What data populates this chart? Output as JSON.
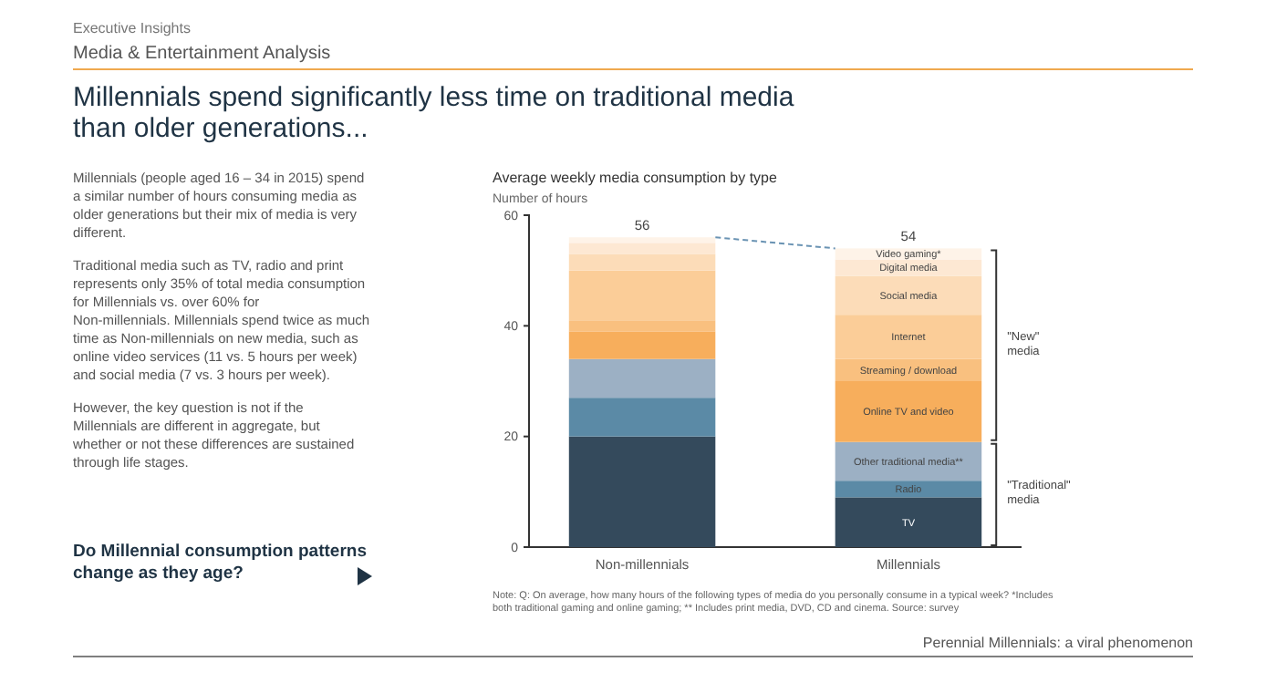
{
  "chart_data": {
    "type": "bar",
    "stacked": true,
    "title": "Millennials spend significantly less time on traditional media than older generations...",
    "subtitle": "Average weekly media consumption by type",
    "ylabel": "Number of hours",
    "categories": [
      "Non-millennials",
      "Millennials"
    ],
    "series": [
      {
        "name": "TV",
        "color": "#344a5c",
        "values": [
          20,
          9
        ]
      },
      {
        "name": "Radio",
        "color": "#5b8aa6",
        "values": [
          7,
          3
        ]
      },
      {
        "name": "Other traditional media**",
        "color": "#9cb0c4",
        "values": [
          7,
          7
        ]
      },
      {
        "name": "Online TV and video",
        "color": "#f7ae5c",
        "values": [
          5,
          11
        ]
      },
      {
        "name": "Streaming / download",
        "color": "#f9c07f",
        "values": [
          2,
          4
        ]
      },
      {
        "name": "Internet",
        "color": "#fbcd98",
        "values": [
          9,
          8
        ]
      },
      {
        "name": "Social media",
        "color": "#fcdcb8",
        "values": [
          3,
          7
        ]
      },
      {
        "name": "Digital media",
        "color": "#fde8d3",
        "values": [
          2,
          3
        ]
      },
      {
        "name": "Video gaming*",
        "color": "#fef3e8",
        "values": [
          1,
          2
        ]
      }
    ],
    "totals": [
      "56",
      "54"
    ],
    "ylim": [
      0,
      60
    ],
    "yticks": [
      0,
      20,
      40,
      60
    ],
    "grid": false,
    "annotations": [
      "Executive Insights",
      "Media & Entertainment Analysis",
      "Millennials (people aged 16 – 34 in 2015) spend a similar number of hours consuming media as older generations but their mix of media is very different.",
      "Traditional media such as TV, radio and print represents only 35% of total media consumption for Millennials vs. over 60% for Non-millennials. Millennials spend twice as much time as Non-millennials on new media, such as online video services (11 vs. 5 hours per week) and social media (7 vs. 3 hours per week).",
      "However, the key question is not if the Millennials are different in aggregate, but whether or not these differences are sustained through life stages.",
      "Do Millennial consumption patterns change as they age?",
      "\"New\" media",
      "\"Traditional\" media",
      "Note: Q: On average, how many hours of the following types of media do you personally consume in a typical week? *Includes both traditional gaming and online gaming; ** Includes print media, DVD, CD and cinema. Source: survey",
      "Perennial Millennials: a viral phenomenon"
    ]
  }
}
